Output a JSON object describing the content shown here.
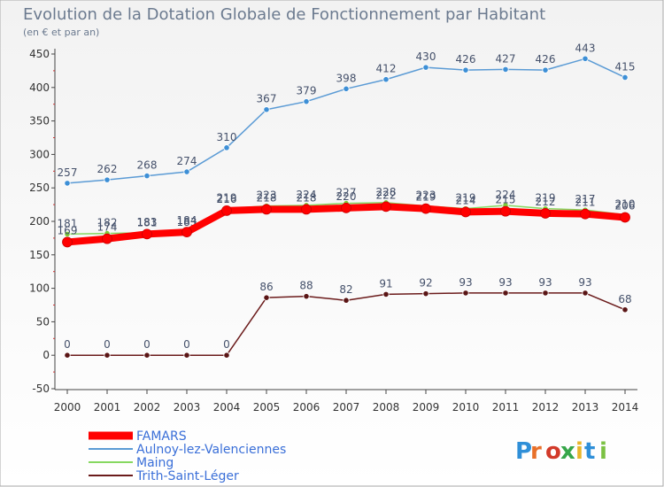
{
  "chart_data": {
    "type": "line",
    "title": "Evolution de la Dotation Globale de Fonctionnement par Habitant",
    "subtitle": "(en € et par an)",
    "xlabel": "",
    "ylabel": "",
    "ylim": [
      -50,
      450
    ],
    "yticks": [
      -50,
      0,
      50,
      100,
      150,
      200,
      250,
      300,
      350,
      400,
      450
    ],
    "categories": [
      "2000",
      "2001",
      "2002",
      "2003",
      "2004",
      "2005",
      "2006",
      "2007",
      "2008",
      "2009",
      "2010",
      "2011",
      "2012",
      "2013",
      "2014"
    ],
    "series": [
      {
        "name": "Trith-Saint-Léger",
        "color": "#6b1b1b",
        "marker_color": "#5a1515",
        "values": [
          0,
          0,
          0,
          0,
          0,
          86,
          88,
          82,
          91,
          92,
          93,
          93,
          93,
          93,
          68
        ],
        "labels": [
          "0",
          "0",
          "0",
          "0",
          "0",
          "86",
          "88",
          "82",
          "91",
          "92",
          "93",
          "93",
          "93",
          "93",
          "68"
        ]
      },
      {
        "name": "Maing",
        "color": "#86d860",
        "marker_color": "#7ecb3a",
        "values": [
          181,
          182,
          183,
          183,
          219,
          223,
          224,
          227,
          228,
          223,
          219,
          224,
          219,
          217,
          210
        ],
        "labels": [
          "181",
          "182",
          "183",
          "183",
          "219",
          "223",
          "224",
          "227",
          "228",
          "223",
          "219",
          "224",
          "219",
          "217",
          "210"
        ]
      },
      {
        "name": "FAMARS",
        "color": "#ff0000",
        "marker_color": "#ff0000",
        "values": [
          169,
          174,
          181,
          184,
          216,
          218,
          218,
          220,
          222,
          219,
          214,
          215,
          212,
          211,
          206
        ],
        "labels": [
          "169",
          "174",
          "181",
          "184",
          "216",
          "218",
          "218",
          "220",
          "222",
          "219",
          "214",
          "215",
          "212",
          "211",
          "206"
        ]
      },
      {
        "name": "Aulnoy-lez-Valenciennes",
        "color": "#5b9bd5",
        "marker_color": "#3d8fd6",
        "values": [
          257,
          262,
          268,
          274,
          310,
          367,
          379,
          398,
          412,
          430,
          426,
          427,
          426,
          443,
          415
        ],
        "labels": [
          "257",
          "262",
          "268",
          "274",
          "310",
          "367",
          "379",
          "398",
          "412",
          "430",
          "426",
          "427",
          "426",
          "443",
          "415"
        ]
      }
    ],
    "legend": [
      {
        "name": "FAMARS",
        "color": "#ff0000"
      },
      {
        "name": "Aulnoy-lez-Valenciennes",
        "color": "#5b9bd5"
      },
      {
        "name": "Maing",
        "color": "#86d860"
      },
      {
        "name": "Trith-Saint-Léger",
        "color": "#6b1b1b"
      }
    ],
    "legend_position": "bottom-left",
    "grid": false
  },
  "watermark": "Proxiti",
  "colors": {
    "title": "#6b7a8f",
    "axis": "#444444",
    "label": "#44506a"
  }
}
